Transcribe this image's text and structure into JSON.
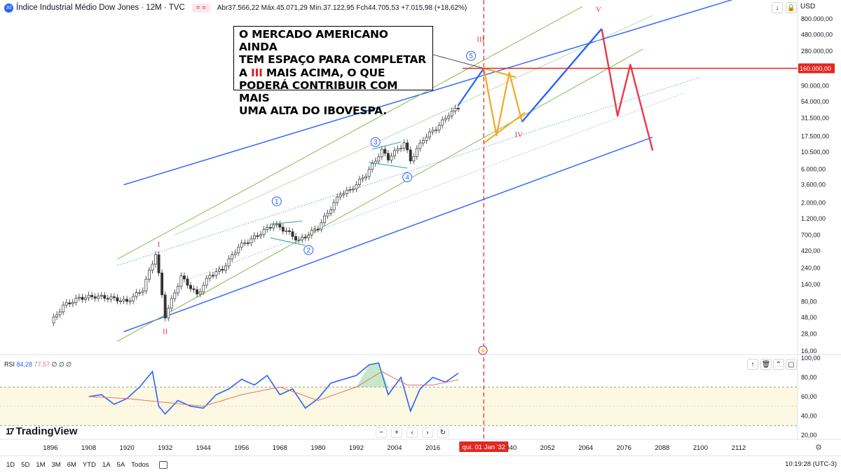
{
  "header": {
    "symbol_icon": "dji-icon",
    "symbol_icon_text": "30",
    "title": "Índice Industrial Médio Dow Jones · 12M · TVC",
    "chip": "= ≈",
    "ohlc_text": "Abr37.566,22  Máx.45.071,29  Mín.37.122,95  Fch44.705,53  +7.015,98 (+18,62%)",
    "currency": "USD"
  },
  "toolbar": {
    "arrow_down_icon": "arrow-down-icon",
    "lock_icon": "lock-icon",
    "price_label": "160.000,00"
  },
  "callout": {
    "line1": "O MERCADO AMERICANO AINDA",
    "line2": "TEM ESPAÇO PARA COMPLETAR",
    "line3_prefix": "A ",
    "line3_red": "III",
    "line3_suffix": " MAIS ACIMA, O QUE",
    "line4": "PODERÁ CONTRIBUIR COM MAIS",
    "line5": "UMA ALTA DO IBOVESPA."
  },
  "rsi": {
    "label": "RSI",
    "value1": "84,28",
    "value2": "77,57",
    "zeros": "∅ ∅ ∅"
  },
  "branding": {
    "name": "TradingView",
    "logo_icon": "tradingview-logo-icon"
  },
  "date_label": "qui. 01 Jan '32",
  "bottom": {
    "timeframes": [
      "1D",
      "5D",
      "1M",
      "3M",
      "6M",
      "YTD",
      "1A",
      "5A",
      "Todos"
    ],
    "calendar_icon": "calendar-icon",
    "clock": "10:19:28 (UTC-3)"
  },
  "colors": {
    "up": "#089981",
    "down": "#f23645",
    "channel_blue": "#2962ff",
    "wave_orange": "#f5a623",
    "wave_red": "#e8394a",
    "rsi_line": "#2962ff",
    "rsi_ma": "#e57373"
  },
  "chart_data": [
    {
      "type": "line",
      "title": "Índice Industrial Médio Dow Jones",
      "y_scale": "log",
      "x_ticks": [
        "1896",
        "1908",
        "1920",
        "1932",
        "1944",
        "1956",
        "1968",
        "1980",
        "1992",
        "2004",
        "2016",
        "2040",
        "2052",
        "2064",
        "2076",
        "2088",
        "2100",
        "2112"
      ],
      "y_ticks": [
        "800.000,00",
        "480.000,00",
        "280.000,00",
        "90.000,00",
        "54.000,00",
        "31.500,00",
        "17.500,00",
        "10.500,00",
        "6.000,00",
        "3.600,00",
        "2.000,00",
        "1.200,00",
        "700,00",
        "420,00",
        "240,00",
        "140,00",
        "80,00",
        "48,00",
        "28,00",
        "16,00"
      ],
      "highlight_price": "160.000,00",
      "series": [
        {
          "name": "",
          "x": [
            1896,
            1900,
            1905,
            1910,
            1915,
            1920,
            1925,
            1929,
            1932,
            1937,
            1942,
            1946,
            1950,
            1955,
            1960,
            1966,
            1970,
            1974,
            1980,
            1987,
            1990,
            1995,
            2000,
            2002,
            2007,
            2009,
            2013,
            2018,
            2021,
            2024
          ],
          "values": [
            40,
            70,
            90,
            95,
            90,
            80,
            120,
            380,
            50,
            180,
            100,
            190,
            230,
            480,
            650,
            1000,
            800,
            580,
            900,
            2700,
            3000,
            5000,
            11000,
            8500,
            14000,
            8000,
            16000,
            25000,
            36000,
            44705
          ]
        }
      ],
      "wave_labels": [
        "I",
        "II",
        "III",
        "IV",
        "V",
        "1",
        "2",
        "3",
        "4",
        "5"
      ]
    },
    {
      "type": "line",
      "title": "RSI",
      "y_ticks": [
        "100,00",
        "80,00",
        "60,00",
        "40,00",
        "20,00"
      ],
      "series": [
        {
          "name": "",
          "x": [
            1908,
            1912,
            1916,
            1920,
            1924,
            1928,
            1930,
            1932,
            1936,
            1940,
            1944,
            1948,
            1952,
            1956,
            1960,
            1964,
            1968,
            1972,
            1976,
            1980,
            1984,
            1988,
            1992,
            1996,
            1999,
            2002,
            2006,
            2009,
            2012,
            2016,
            2020,
            2024
          ],
          "values": [
            60,
            62,
            52,
            58,
            70,
            86,
            50,
            42,
            56,
            50,
            48,
            62,
            68,
            78,
            72,
            82,
            62,
            68,
            48,
            58,
            74,
            78,
            82,
            93,
            95,
            62,
            80,
            45,
            68,
            80,
            75,
            84.28
          ]
        },
        {
          "name": "",
          "x": [
            1908,
            1920,
            1932,
            1944,
            1956,
            1968,
            1980,
            1992,
            2000,
            2008,
            2016,
            2024
          ],
          "values": [
            60,
            58,
            54,
            50,
            62,
            70,
            56,
            70,
            86,
            72,
            72,
            77.57
          ]
        }
      ]
    }
  ]
}
